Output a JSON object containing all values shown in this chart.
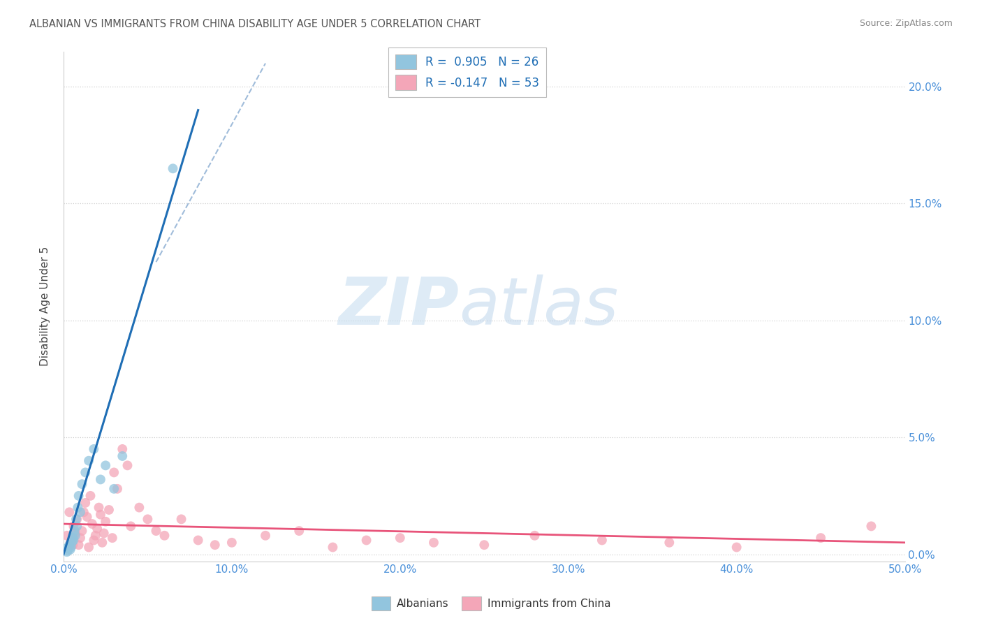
{
  "title": "ALBANIAN VS IMMIGRANTS FROM CHINA DISABILITY AGE UNDER 5 CORRELATION CHART",
  "source": "Source: ZipAtlas.com",
  "ylabel": "Disability Age Under 5",
  "ylabel_right_ticks": [
    "0.0%",
    "5.0%",
    "10.0%",
    "15.0%",
    "20.0%"
  ],
  "ylabel_right_vals": [
    0.0,
    5.0,
    10.0,
    15.0,
    20.0
  ],
  "xticks": [
    0.0,
    10.0,
    20.0,
    30.0,
    40.0,
    50.0
  ],
  "xtick_labels": [
    "0.0%",
    "10.0%",
    "20.0%",
    "30.0%",
    "40.0%",
    "50.0%"
  ],
  "xmin": 0.0,
  "xmax": 50.0,
  "ymin": -0.3,
  "ymax": 21.5,
  "legend_r1": "R =  0.905   N = 26",
  "legend_r2": "R = -0.147   N = 53",
  "blue_color": "#92c5de",
  "pink_color": "#f4a6b8",
  "blue_line_color": "#1f6eb5",
  "pink_line_color": "#e8547a",
  "dash_line_color": "#a0bcda",
  "albanians_x": [
    0.3,
    0.5,
    0.7,
    0.4,
    0.6,
    0.8,
    1.0,
    0.2,
    0.35,
    0.45,
    0.55,
    0.65,
    0.75,
    0.85,
    0.9,
    1.1,
    1.3,
    1.5,
    1.8,
    2.2,
    2.5,
    3.0,
    0.25,
    0.15,
    3.5,
    6.5
  ],
  "albanians_y": [
    0.3,
    0.5,
    0.8,
    0.2,
    0.6,
    1.2,
    1.8,
    0.1,
    0.4,
    0.3,
    0.7,
    1.0,
    1.5,
    2.0,
    2.5,
    3.0,
    3.5,
    4.0,
    4.5,
    3.2,
    3.8,
    2.8,
    0.15,
    0.25,
    4.2,
    16.5
  ],
  "china_x": [
    0.2,
    0.4,
    0.5,
    0.6,
    0.7,
    0.8,
    0.9,
    1.0,
    1.1,
    1.2,
    1.3,
    1.4,
    1.5,
    1.6,
    1.7,
    1.8,
    1.9,
    2.0,
    2.1,
    2.2,
    2.3,
    2.4,
    2.5,
    2.7,
    2.9,
    3.0,
    3.2,
    3.5,
    3.8,
    4.0,
    4.5,
    5.0,
    5.5,
    6.0,
    7.0,
    8.0,
    9.0,
    10.0,
    12.0,
    14.0,
    16.0,
    18.0,
    20.0,
    22.0,
    25.0,
    28.0,
    32.0,
    36.0,
    40.0,
    45.0,
    48.0,
    0.35,
    0.55
  ],
  "china_y": [
    0.8,
    0.5,
    0.6,
    1.2,
    0.9,
    1.5,
    0.4,
    0.7,
    1.0,
    1.8,
    2.2,
    1.6,
    0.3,
    2.5,
    1.3,
    0.6,
    0.8,
    1.1,
    2.0,
    1.7,
    0.5,
    0.9,
    1.4,
    1.9,
    0.7,
    3.5,
    2.8,
    4.5,
    3.8,
    1.2,
    2.0,
    1.5,
    1.0,
    0.8,
    1.5,
    0.6,
    0.4,
    0.5,
    0.8,
    1.0,
    0.3,
    0.6,
    0.7,
    0.5,
    0.4,
    0.8,
    0.6,
    0.5,
    0.3,
    0.7,
    1.2,
    1.8,
    0.4
  ],
  "watermark_zip": "ZIP",
  "watermark_atlas": "atlas",
  "grid_color": "#d0d0d0",
  "background_color": "#ffffff",
  "title_color": "#555555",
  "axis_tick_color": "#4a90d9",
  "marker_size": 100,
  "blue_line_x": [
    0.0,
    8.0
  ],
  "blue_line_y": [
    0.0,
    19.0
  ],
  "dash_line_x": [
    5.5,
    12.0
  ],
  "dash_line_y": [
    12.5,
    21.0
  ],
  "pink_line_x": [
    0.0,
    50.0
  ],
  "pink_line_y": [
    1.3,
    0.5
  ]
}
